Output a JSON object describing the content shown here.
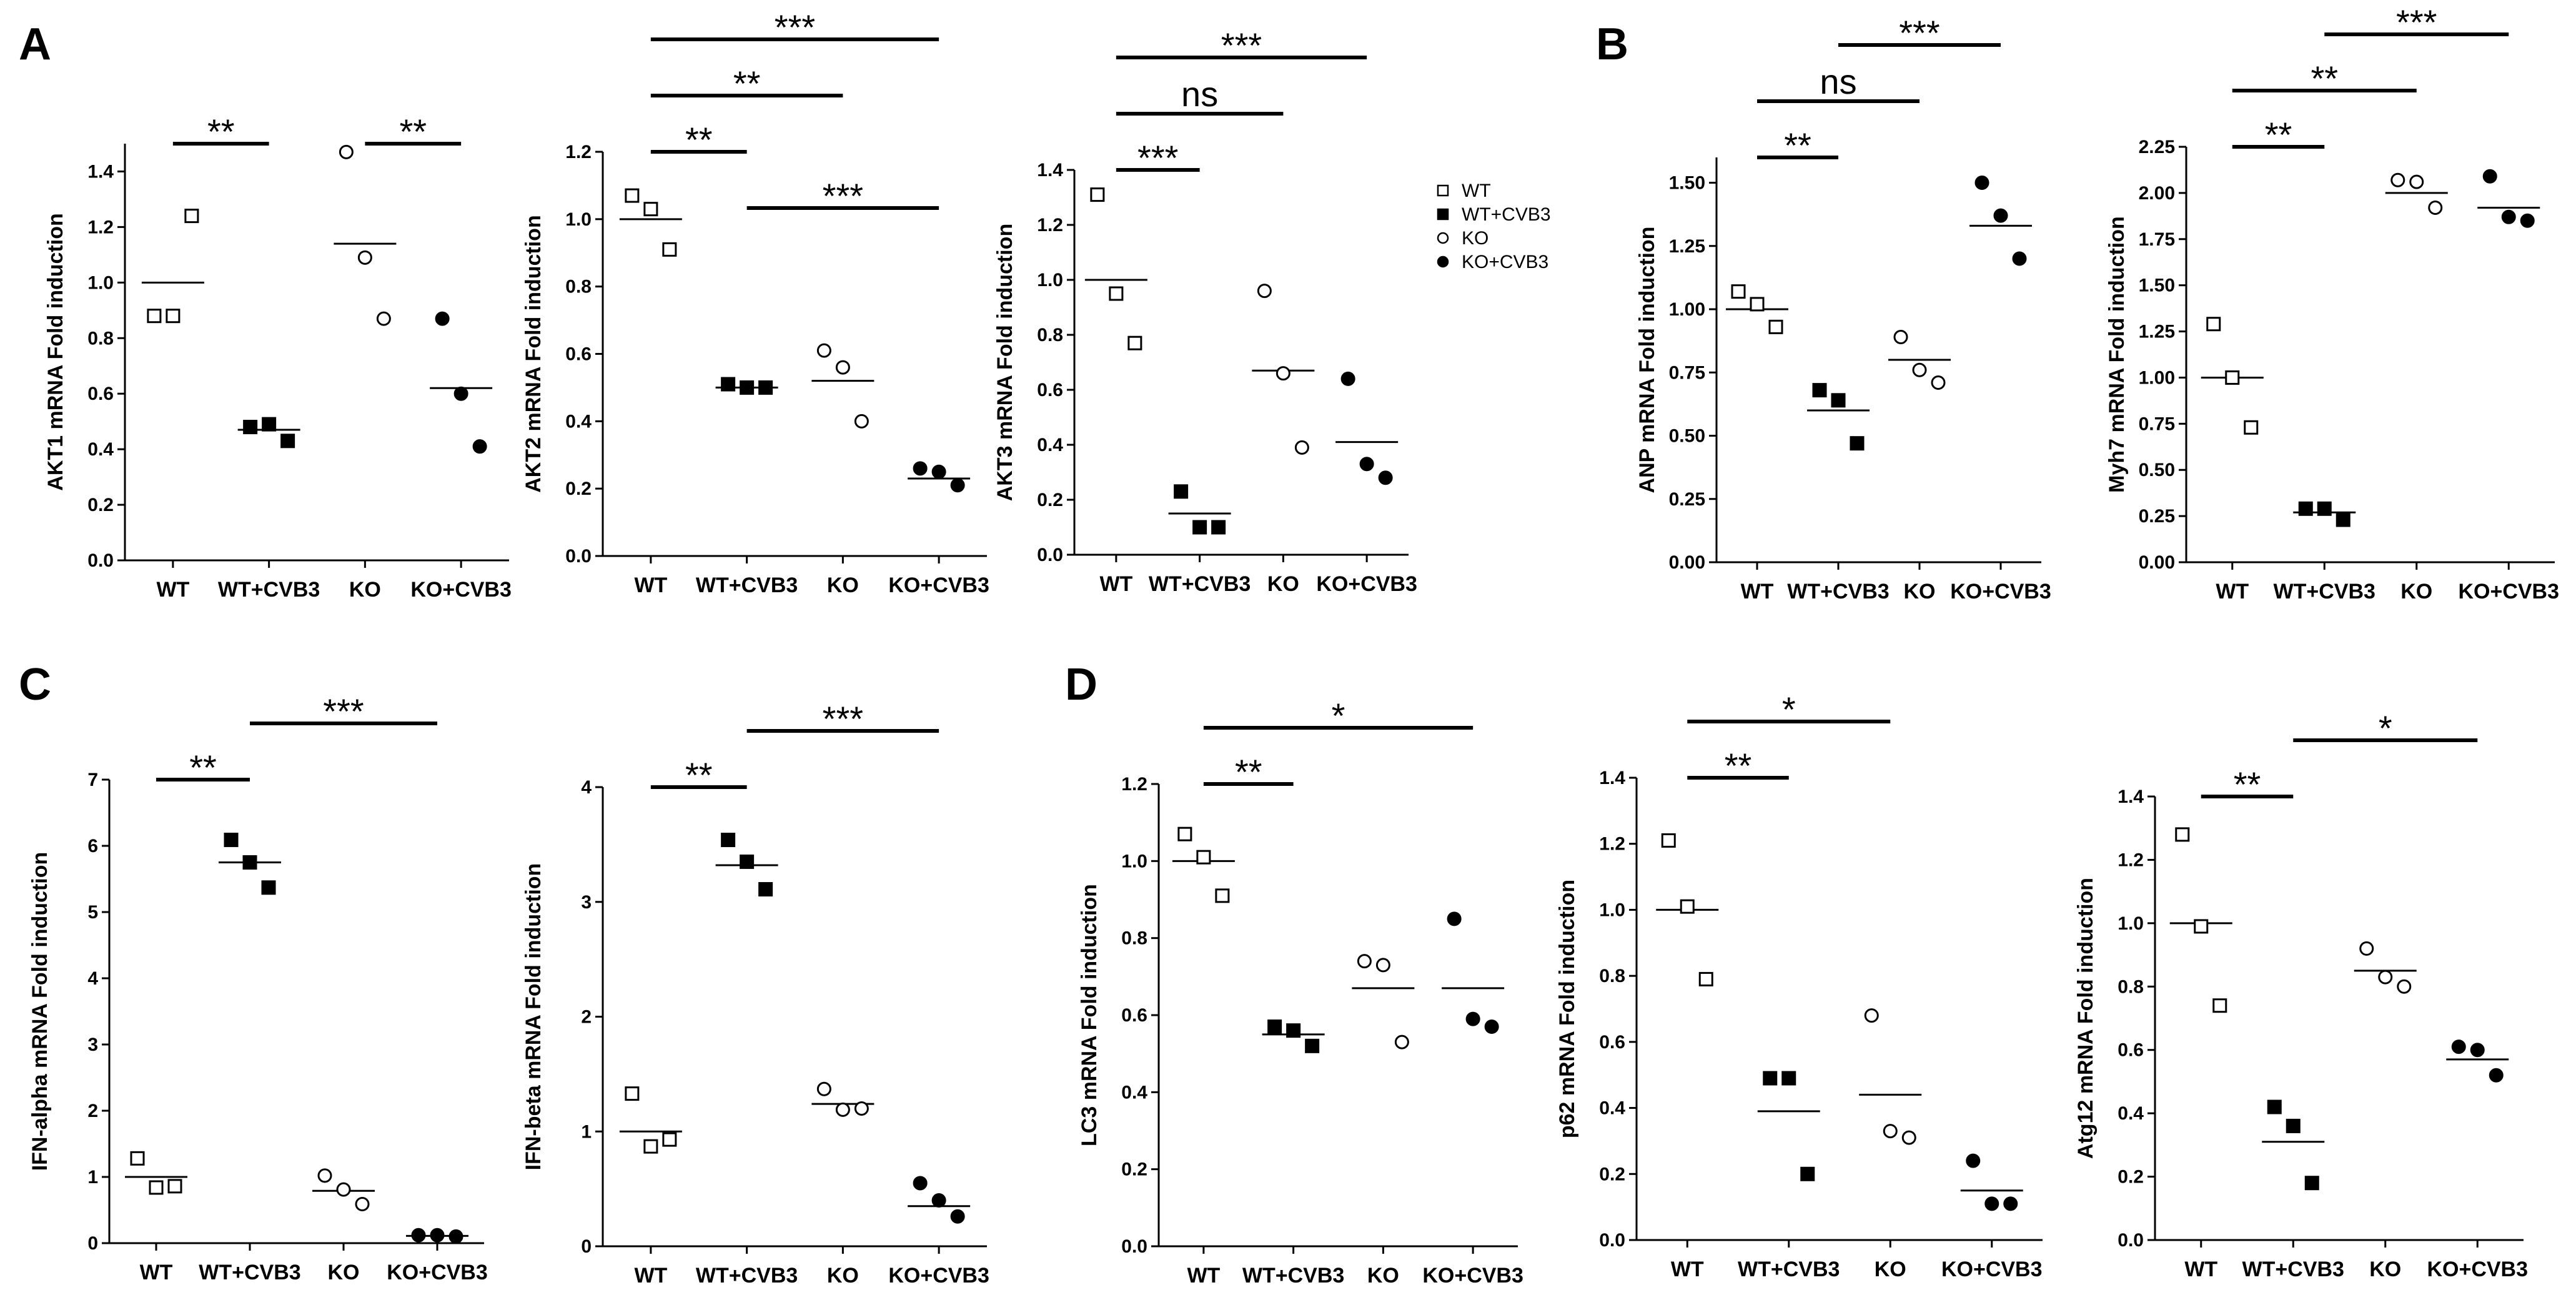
{
  "panel_letters": [
    "A",
    "B",
    "C",
    "D"
  ],
  "legend": {
    "entries": [
      {
        "label": "WT",
        "marker": "open-square"
      },
      {
        "label": "WT+CVB3",
        "marker": "filled-square"
      },
      {
        "label": "KO",
        "marker": "open-circle"
      },
      {
        "label": "KO+CVB3",
        "marker": "filled-circle"
      }
    ]
  },
  "chart_data": [
    {
      "id": "akt1",
      "type": "scatter",
      "ylabel": "AKT1 mRNA Fold induction",
      "ylim": [
        0,
        1.5
      ],
      "yticks": [
        "0.0",
        "0.2",
        "0.4",
        "0.6",
        "0.8",
        "1.0",
        "1.2",
        "1.4"
      ],
      "categories": [
        "WT",
        "WT+CVB3",
        "KO",
        "KO+CVB3"
      ],
      "groups": [
        {
          "name": "WT",
          "marker": "open-square",
          "mean": 1.0,
          "points": [
            0.88,
            0.88,
            1.24
          ]
        },
        {
          "name": "WT+CVB3",
          "marker": "filled-square",
          "mean": 0.47,
          "points": [
            0.48,
            0.49,
            0.43
          ]
        },
        {
          "name": "KO",
          "marker": "open-circle",
          "mean": 1.14,
          "points": [
            1.47,
            1.09,
            0.87
          ]
        },
        {
          "name": "KO+CVB3",
          "marker": "filled-circle",
          "mean": 0.62,
          "points": [
            0.87,
            0.6,
            0.41
          ]
        }
      ],
      "significance": [
        {
          "from": 0,
          "to": 1,
          "label": "**",
          "level": 1
        },
        {
          "from": 2,
          "to": 3,
          "label": "**",
          "level": 1
        }
      ]
    },
    {
      "id": "akt2",
      "type": "scatter",
      "ylabel": "AKT2 mRNA Fold induction",
      "ylim": [
        0,
        1.2
      ],
      "yticks": [
        "0.0",
        "0.2",
        "0.4",
        "0.6",
        "0.8",
        "1.0",
        "1.2"
      ],
      "categories": [
        "WT",
        "WT+CVB3",
        "KO",
        "KO+CVB3"
      ],
      "groups": [
        {
          "name": "WT",
          "marker": "open-square",
          "mean": 1.0,
          "points": [
            1.07,
            1.03,
            0.91
          ]
        },
        {
          "name": "WT+CVB3",
          "marker": "filled-square",
          "mean": 0.5,
          "points": [
            0.51,
            0.5,
            0.5
          ]
        },
        {
          "name": "KO",
          "marker": "open-circle",
          "mean": 0.52,
          "points": [
            0.61,
            0.56,
            0.4
          ]
        },
        {
          "name": "KO+CVB3",
          "marker": "filled-circle",
          "mean": 0.23,
          "points": [
            0.26,
            0.25,
            0.21
          ]
        }
      ],
      "significance": [
        {
          "from": 0,
          "to": 1,
          "label": "**",
          "level": 1
        },
        {
          "from": 0,
          "to": 2,
          "label": "**",
          "level": 2
        },
        {
          "from": 0,
          "to": 3,
          "label": "***",
          "level": 3
        },
        {
          "from": 1,
          "to": 3,
          "label": "***",
          "level": 0
        }
      ]
    },
    {
      "id": "akt3",
      "type": "scatter",
      "ylabel": "AKT3 mRNA Fold induction",
      "ylim": [
        0,
        1.4
      ],
      "yticks": [
        "0.0",
        "0.2",
        "0.4",
        "0.6",
        "0.8",
        "1.0",
        "1.2",
        "1.4"
      ],
      "categories": [
        "WT",
        "WT+CVB3",
        "KO",
        "KO+CVB3"
      ],
      "groups": [
        {
          "name": "WT",
          "marker": "open-square",
          "mean": 1.0,
          "points": [
            1.31,
            0.95,
            0.77
          ]
        },
        {
          "name": "WT+CVB3",
          "marker": "filled-square",
          "mean": 0.15,
          "points": [
            0.23,
            0.1,
            0.1
          ]
        },
        {
          "name": "KO",
          "marker": "open-circle",
          "mean": 0.67,
          "points": [
            0.96,
            0.66,
            0.39
          ]
        },
        {
          "name": "KO+CVB3",
          "marker": "filled-circle",
          "mean": 0.41,
          "points": [
            0.64,
            0.33,
            0.28
          ]
        }
      ],
      "significance": [
        {
          "from": 0,
          "to": 1,
          "label": "***",
          "level": 1
        },
        {
          "from": 0,
          "to": 2,
          "label": "ns",
          "level": 2
        },
        {
          "from": 0,
          "to": 3,
          "label": "***",
          "level": 3
        }
      ]
    },
    {
      "id": "anp",
      "type": "scatter",
      "ylabel": "ANP mRNA Fold induction",
      "ylim": [
        0,
        1.6
      ],
      "yticks": [
        "0.00",
        "0.25",
        "0.50",
        "0.75",
        "1.00",
        "1.25",
        "1.50"
      ],
      "categories": [
        "WT",
        "WT+CVB3",
        "KO",
        "KO+CVB3"
      ],
      "groups": [
        {
          "name": "WT",
          "marker": "open-square",
          "mean": 1.0,
          "points": [
            1.07,
            1.02,
            0.93
          ]
        },
        {
          "name": "WT+CVB3",
          "marker": "filled-square",
          "mean": 0.6,
          "points": [
            0.68,
            0.64,
            0.47
          ]
        },
        {
          "name": "KO",
          "marker": "open-circle",
          "mean": 0.8,
          "points": [
            0.89,
            0.76,
            0.71
          ]
        },
        {
          "name": "KO+CVB3",
          "marker": "filled-circle",
          "mean": 1.33,
          "points": [
            1.5,
            1.37,
            1.2
          ]
        }
      ],
      "significance": [
        {
          "from": 0,
          "to": 1,
          "label": "**",
          "level": 1
        },
        {
          "from": 0,
          "to": 2,
          "label": "ns",
          "level": 2
        },
        {
          "from": 1,
          "to": 3,
          "label": "***",
          "level": 3
        }
      ]
    },
    {
      "id": "myh7",
      "type": "scatter",
      "ylabel": "Myh7 mRNA Fold induction",
      "ylim": [
        0,
        2.25
      ],
      "yticks": [
        "0.00",
        "0.25",
        "0.50",
        "0.75",
        "1.00",
        "1.25",
        "1.50",
        "1.75",
        "2.00",
        "2.25"
      ],
      "categories": [
        "WT",
        "WT+CVB3",
        "KO",
        "KO+CVB3"
      ],
      "groups": [
        {
          "name": "WT",
          "marker": "open-square",
          "mean": 1.0,
          "points": [
            1.29,
            1.0,
            0.73
          ]
        },
        {
          "name": "WT+CVB3",
          "marker": "filled-square",
          "mean": 0.27,
          "points": [
            0.29,
            0.29,
            0.23
          ]
        },
        {
          "name": "KO",
          "marker": "open-circle",
          "mean": 2.0,
          "points": [
            2.07,
            2.06,
            1.92
          ]
        },
        {
          "name": "KO+CVB3",
          "marker": "filled-circle",
          "mean": 1.92,
          "points": [
            2.09,
            1.87,
            1.85
          ]
        }
      ],
      "significance": [
        {
          "from": 0,
          "to": 1,
          "label": "**",
          "level": 1
        },
        {
          "from": 0,
          "to": 2,
          "label": "**",
          "level": 2
        },
        {
          "from": 1,
          "to": 3,
          "label": "***",
          "level": 3
        }
      ]
    },
    {
      "id": "ifna",
      "type": "scatter",
      "ylabel": "IFN-alpha mRNA Fold induction",
      "ylim": [
        0,
        7
      ],
      "yticks": [
        "0",
        "1",
        "2",
        "3",
        "4",
        "5",
        "6",
        "7"
      ],
      "categories": [
        "WT",
        "WT+CVB3",
        "KO",
        "KO+CVB3"
      ],
      "groups": [
        {
          "name": "WT",
          "marker": "open-square",
          "mean": 1.0,
          "points": [
            1.28,
            0.84,
            0.86
          ]
        },
        {
          "name": "WT+CVB3",
          "marker": "filled-square",
          "mean": 5.75,
          "points": [
            6.09,
            5.75,
            5.37
          ]
        },
        {
          "name": "KO",
          "marker": "open-circle",
          "mean": 0.79,
          "points": [
            1.02,
            0.81,
            0.59
          ]
        },
        {
          "name": "KO+CVB3",
          "marker": "filled-circle",
          "mean": 0.11,
          "points": [
            0.12,
            0.12,
            0.1
          ]
        }
      ],
      "significance": [
        {
          "from": 0,
          "to": 1,
          "label": "**",
          "level": 1
        },
        {
          "from": 1,
          "to": 3,
          "label": "***",
          "level": 2
        }
      ]
    },
    {
      "id": "ifnb",
      "type": "scatter",
      "ylabel": "IFN-beta mRNA Fold induction",
      "ylim": [
        0,
        4
      ],
      "yticks": [
        "0",
        "1",
        "2",
        "3",
        "4"
      ],
      "categories": [
        "WT",
        "WT+CVB3",
        "KO",
        "KO+CVB3"
      ],
      "groups": [
        {
          "name": "WT",
          "marker": "open-square",
          "mean": 1.0,
          "points": [
            1.33,
            0.87,
            0.93
          ]
        },
        {
          "name": "WT+CVB3",
          "marker": "filled-square",
          "mean": 3.32,
          "points": [
            3.54,
            3.35,
            3.11
          ]
        },
        {
          "name": "KO",
          "marker": "open-circle",
          "mean": 1.24,
          "points": [
            1.37,
            1.19,
            1.2
          ]
        },
        {
          "name": "KO+CVB3",
          "marker": "filled-circle",
          "mean": 0.35,
          "points": [
            0.55,
            0.4,
            0.26
          ]
        }
      ],
      "significance": [
        {
          "from": 0,
          "to": 1,
          "label": "**",
          "level": 1
        },
        {
          "from": 1,
          "to": 3,
          "label": "***",
          "level": 2
        }
      ]
    },
    {
      "id": "lc3",
      "type": "scatter",
      "ylabel": "LC3 mRNA Fold induction",
      "ylim": [
        0,
        1.2
      ],
      "yticks": [
        "0.0",
        "0.2",
        "0.4",
        "0.6",
        "0.8",
        "1.0",
        "1.2"
      ],
      "categories": [
        "WT",
        "WT+CVB3",
        "KO",
        "KO+CVB3"
      ],
      "groups": [
        {
          "name": "WT",
          "marker": "open-square",
          "mean": 1.0,
          "points": [
            1.07,
            1.01,
            0.91
          ]
        },
        {
          "name": "WT+CVB3",
          "marker": "filled-square",
          "mean": 0.55,
          "points": [
            0.57,
            0.56,
            0.52
          ]
        },
        {
          "name": "KO",
          "marker": "open-circle",
          "mean": 0.67,
          "points": [
            0.74,
            0.73,
            0.53
          ]
        },
        {
          "name": "KO+CVB3",
          "marker": "filled-circle",
          "mean": 0.67,
          "points": [
            0.85,
            0.59,
            0.57
          ]
        }
      ],
      "significance": [
        {
          "from": 0,
          "to": 1,
          "label": "**",
          "level": 1
        },
        {
          "from": 0,
          "to": 3,
          "label": "*",
          "level": 2
        }
      ]
    },
    {
      "id": "p62",
      "type": "scatter",
      "ylabel": "p62 mRNA Fold induction",
      "ylim": [
        0,
        1.4
      ],
      "yticks": [
        "0.0",
        "0.2",
        "0.4",
        "0.6",
        "0.8",
        "1.0",
        "1.2",
        "1.4"
      ],
      "categories": [
        "WT",
        "WT+CVB3",
        "KO",
        "KO+CVB3"
      ],
      "groups": [
        {
          "name": "WT",
          "marker": "open-square",
          "mean": 1.0,
          "points": [
            1.21,
            1.01,
            0.79
          ]
        },
        {
          "name": "WT+CVB3",
          "marker": "filled-square",
          "mean": 0.39,
          "points": [
            0.49,
            0.49,
            0.2
          ]
        },
        {
          "name": "KO",
          "marker": "open-circle",
          "mean": 0.44,
          "points": [
            0.68,
            0.33,
            0.31
          ]
        },
        {
          "name": "KO+CVB3",
          "marker": "filled-circle",
          "mean": 0.15,
          "points": [
            0.24,
            0.11,
            0.11
          ]
        }
      ],
      "significance": [
        {
          "from": 0,
          "to": 1,
          "label": "**",
          "level": 1
        },
        {
          "from": 0,
          "to": 2,
          "label": "*",
          "level": 2
        }
      ]
    },
    {
      "id": "atg12",
      "type": "scatter",
      "ylabel": "Atg12 mRNA Fold induction",
      "ylim": [
        0,
        1.4
      ],
      "yticks": [
        "0.0",
        "0.2",
        "0.4",
        "0.6",
        "0.8",
        "1.0",
        "1.2",
        "1.4"
      ],
      "categories": [
        "WT",
        "WT+CVB3",
        "KO",
        "KO+CVB3"
      ],
      "groups": [
        {
          "name": "WT",
          "marker": "open-square",
          "mean": 1.0,
          "points": [
            1.28,
            0.99,
            0.74
          ]
        },
        {
          "name": "WT+CVB3",
          "marker": "filled-square",
          "mean": 0.31,
          "points": [
            0.42,
            0.36,
            0.18
          ]
        },
        {
          "name": "KO",
          "marker": "open-circle",
          "mean": 0.85,
          "points": [
            0.92,
            0.83,
            0.8
          ]
        },
        {
          "name": "KO+CVB3",
          "marker": "filled-circle",
          "mean": 0.57,
          "points": [
            0.61,
            0.6,
            0.52
          ]
        }
      ],
      "significance": [
        {
          "from": 0,
          "to": 1,
          "label": "**",
          "level": 1
        },
        {
          "from": 1,
          "to": 3,
          "label": "*",
          "level": 2
        }
      ]
    }
  ]
}
